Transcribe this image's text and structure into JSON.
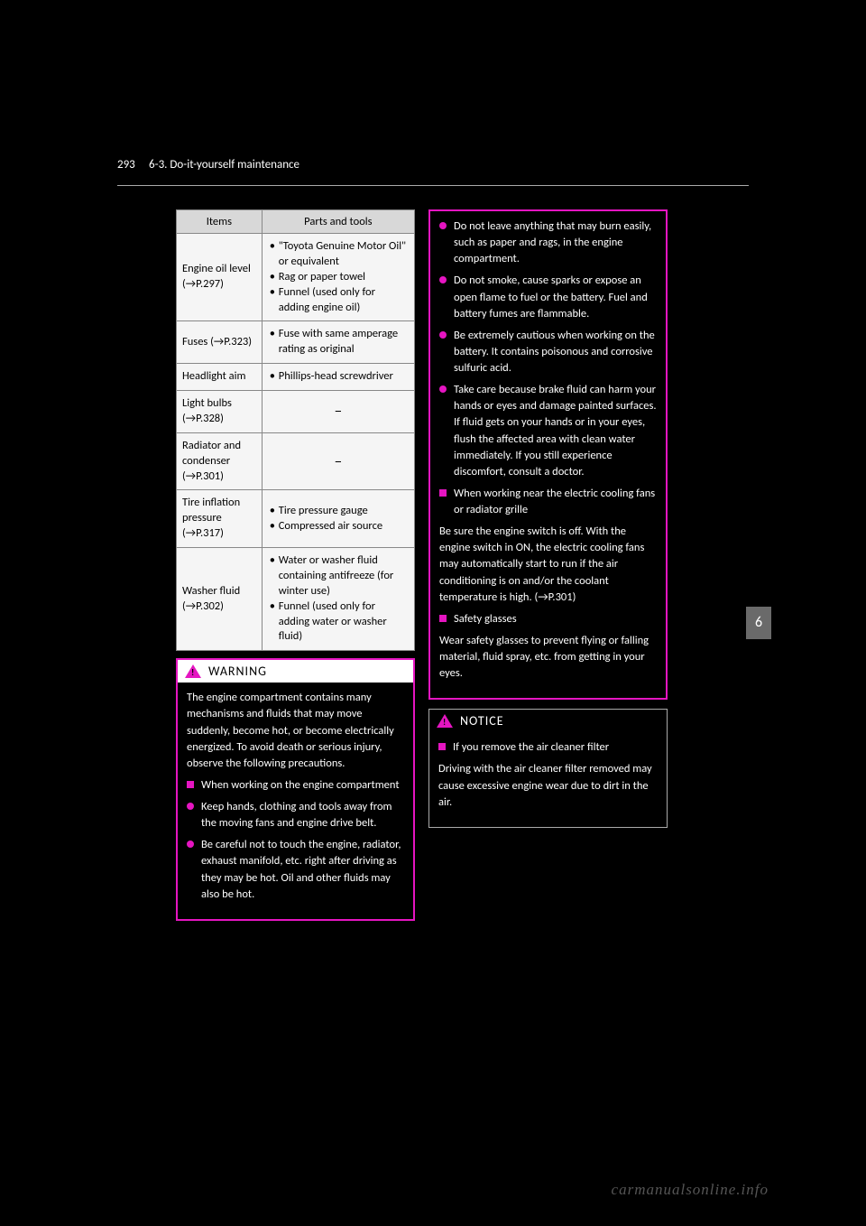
{
  "page_number": "293",
  "section": "6-3. Do-it-yourself maintenance",
  "chapter_tab": "6",
  "footer": "carmanualsonline.info",
  "table": {
    "headers": [
      "Items",
      "Parts and tools"
    ],
    "rows": [
      {
        "item": "Engine oil level (→P.297)",
        "parts": [
          "\"Toyota Genuine Motor Oil\" or equivalent",
          "Rag or paper towel",
          "Funnel (used only for adding engine oil)"
        ],
        "dash": false
      },
      {
        "item": "Fuses (→P.323)",
        "parts": [
          "Fuse with same amperage rating as original"
        ],
        "dash": false
      },
      {
        "item": "Headlight aim",
        "parts": [
          "Phillips-head screwdriver"
        ],
        "dash": false
      },
      {
        "item": "Light bulbs (→P.328)",
        "parts": [],
        "dash": true
      },
      {
        "item": "Radiator and condenser (→P.301)",
        "parts": [],
        "dash": true
      },
      {
        "item": "Tire inflation pressure (→P.317)",
        "parts": [
          "Tire pressure gauge",
          "Compressed air source"
        ],
        "dash": false
      },
      {
        "item": "Washer fluid (→P.302)",
        "parts": [
          "Water or washer fluid containing antifreeze (for winter use)",
          "Funnel (used only for adding water or washer fluid)"
        ],
        "dash": false
      }
    ]
  },
  "warning_left": {
    "title": "WARNING",
    "intro": "The engine compartment contains many mechanisms and fluids that may move suddenly, become hot, or become electrically energized. To avoid death or serious injury, observe the following precautions.",
    "heading1": "When working on the engine compartment",
    "b1": "Keep hands, clothing and tools away from the moving fans and engine drive belt.",
    "b2": "Be careful not to touch the engine, radiator, exhaust manifold, etc. right after driving as they may be hot. Oil and other fluids may also be hot."
  },
  "warning_right": {
    "b3": "Do not leave anything that may burn easily, such as paper and rags, in the engine compartment.",
    "b4": "Do not smoke, cause sparks or expose an open flame to fuel or the battery. Fuel and battery fumes are flammable.",
    "b5": "Be extremely cautious when working on the battery. It contains poisonous and corrosive sulfuric acid.",
    "b6": "Take care because brake fluid can harm your hands or eyes and damage painted surfaces. If fluid gets on your hands or in your eyes, flush the affected area with clean water immediately. If you still experience discomfort, consult a doctor.",
    "heading2": "When working near the electric cooling fans or radiator grille",
    "text2": "Be sure the engine switch is off. With the engine switch in ON, the electric cooling fans may automatically start to run if the air conditioning is on and/or the coolant temperature is high. (→P.301)",
    "heading3": "Safety glasses",
    "text3": "Wear safety glasses to prevent flying or falling material, fluid spray, etc. from getting in your eyes."
  },
  "notice": {
    "title": "NOTICE",
    "heading": "If you remove the air cleaner filter",
    "text": "Driving with the air cleaner filter removed may cause excessive engine wear due to dirt in the air."
  },
  "colors": {
    "accent": "#e515c1",
    "bg": "#000000",
    "cell_bg": "#f5f5f5",
    "header_bg": "#d8d8d8",
    "tab_bg": "#6a6a6a"
  }
}
